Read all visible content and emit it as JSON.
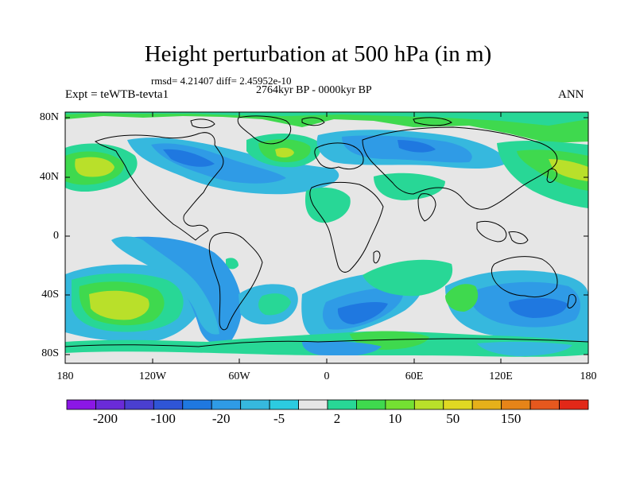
{
  "title": "Height perturbation at 500 hPa (in m)",
  "stats": "rmsd= 4.21407 diff= 2.45952e-10",
  "period": "2764kyr BP - 0000kyr BP",
  "experiment": "Expt = teWTB-tevta1",
  "season": "ANN",
  "map": {
    "projection": "cylindrical equidistant",
    "lon_range": [
      -180,
      180
    ],
    "lat_range": [
      -90,
      90
    ],
    "y_ticks": [
      "80N",
      "40N",
      "0",
      "40S",
      "80S"
    ],
    "x_ticks": [
      "180",
      "120W",
      "60W",
      "0",
      "60E",
      "120E",
      "180"
    ]
  },
  "colorbar": {
    "colors": [
      "#8b17e6",
      "#6a2bd8",
      "#4a3fd0",
      "#2f55d6",
      "#1f78e0",
      "#2f9be6",
      "#36b8de",
      "#2ccbe0",
      "#e6e6e6",
      "#28d796",
      "#3fd94e",
      "#74e032",
      "#b9e02a",
      "#e0d822",
      "#e6b01a",
      "#e68418",
      "#e6581e",
      "#e22818"
    ],
    "labels": [
      "-200",
      "-100",
      "-20",
      "-5",
      "2",
      "10",
      "50",
      "150"
    ]
  },
  "palette": {
    "ocean_neutral": "#e6e6e6",
    "coast": "#000000"
  }
}
